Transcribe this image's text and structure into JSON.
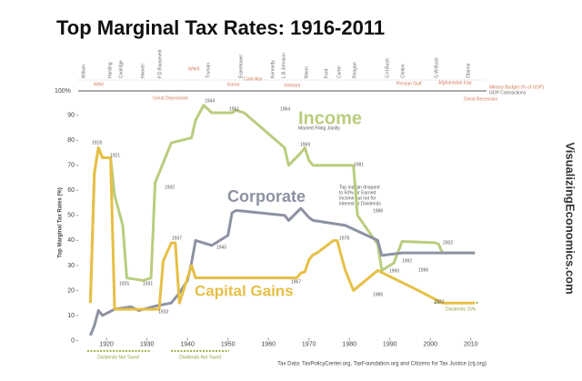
{
  "chart_data": {
    "type": "line",
    "title": "Top Marginal Tax Rates: 1916-2011",
    "y_label": "Top Marginal Tax Rates (%)",
    "xlim": [
      1913,
      2015
    ],
    "ylim": [
      0,
      95
    ],
    "xticks": [
      1920,
      1930,
      1940,
      1950,
      1960,
      1970,
      1980,
      1990,
      2000,
      2010
    ],
    "yticks": [
      0,
      10,
      20,
      30,
      40,
      50,
      60,
      70,
      80,
      90
    ],
    "grid": false,
    "series": [
      {
        "name": "Income",
        "color": "#b9cd7e",
        "x": [
          1916,
          1917,
          1918,
          1919,
          1921,
          1922,
          1924,
          1925,
          1929,
          1931,
          1932,
          1936,
          1941,
          1942,
          1944,
          1946,
          1951,
          1952,
          1954,
          1964,
          1965,
          1968,
          1969,
          1970,
          1971,
          1981,
          1982,
          1987,
          1988,
          1991,
          1993,
          2001,
          2002,
          2003,
          2011
        ],
        "values": [
          15,
          67,
          77,
          73,
          73,
          58,
          46,
          25,
          24,
          25,
          63,
          79,
          81,
          88,
          94,
          91,
          91,
          92,
          91,
          77,
          70,
          75,
          77,
          72,
          70,
          70,
          50,
          38.5,
          28,
          31,
          39.6,
          39.1,
          38.6,
          35,
          35
        ]
      },
      {
        "name": "Corporate",
        "color": "#8d92a3",
        "x": [
          1916,
          1917,
          1918,
          1919,
          1922,
          1926,
          1928,
          1932,
          1936,
          1938,
          1940,
          1941,
          1942,
          1946,
          1950,
          1951,
          1952,
          1964,
          1965,
          1968,
          1970,
          1971,
          1979,
          1987,
          1988,
          1993,
          2011
        ],
        "values": [
          2,
          6,
          12,
          10,
          12.5,
          13.5,
          12,
          13.75,
          15,
          19,
          24,
          31,
          40,
          38,
          42,
          51,
          52,
          50,
          48,
          52.8,
          49.2,
          48,
          46,
          40,
          34,
          35,
          35
        ]
      },
      {
        "name": "Capital Gains",
        "color": "#e6bf45",
        "x": [
          1916,
          1917,
          1918,
          1919,
          1921,
          1922,
          1933,
          1934,
          1936,
          1937,
          1938,
          1941,
          1942,
          1967,
          1968,
          1969,
          1970,
          1971,
          1972,
          1976,
          1977,
          1978,
          1979,
          1981,
          1987,
          1997,
          2003,
          2011
        ],
        "values": [
          15,
          67,
          77,
          73,
          73,
          12.5,
          12.5,
          31.8,
          39,
          39,
          15,
          30,
          25,
          25,
          26.9,
          27.5,
          32.2,
          34.25,
          35,
          39.9,
          39.9,
          33.8,
          28,
          20,
          28,
          20,
          15,
          15
        ]
      }
    ],
    "point_labels": [
      "1918",
      "1921",
      "1925",
      "1931",
      "1932",
      "1937",
      "1944",
      "1951",
      "1964",
      "1969",
      "1981",
      "1986",
      "1933",
      "1945",
      "1967",
      "1978",
      "1986",
      "1990",
      "1992",
      "1996",
      "2002",
      "2003"
    ],
    "income_note": "Married Filing Jointly",
    "note_lines": [
      "Top margin dropped",
      "to 50% for Earned",
      "Income but not for",
      "Interest or Dividends"
    ],
    "dividends_not_taxed": [
      "Dividends Not Taxed",
      "Dividends Not Taxed"
    ],
    "dividends_15": "Dividends 15%",
    "presidents": [
      "Wilson",
      "Harding",
      "Coolidge",
      "Hoover",
      "F.D.Roosevelt",
      "Truman",
      "Eisenhower",
      "Kennedy",
      "L.B.Johnson",
      "Nixon",
      "Ford",
      "Carter",
      "Reagan",
      "G.H.Bush",
      "Clinton",
      "G.W.Bush",
      "Obama"
    ],
    "events": [
      "WWI",
      "WWII",
      "Great Depression",
      "Korea",
      "Cold War",
      "Vietnam",
      "Persian Gulf",
      "Afghanistan Iraq",
      "Great Recession"
    ],
    "strip_100": "100%",
    "strip_legend": [
      "Military Budget (% of GDP)",
      "GDP Contractions"
    ],
    "source": "Tax Data: TaxPolicyCenter.org, TaxFoundation.org and Citizens for Tax Justice (ctj.org)",
    "watermark": "VisualizingEconomics.com"
  }
}
